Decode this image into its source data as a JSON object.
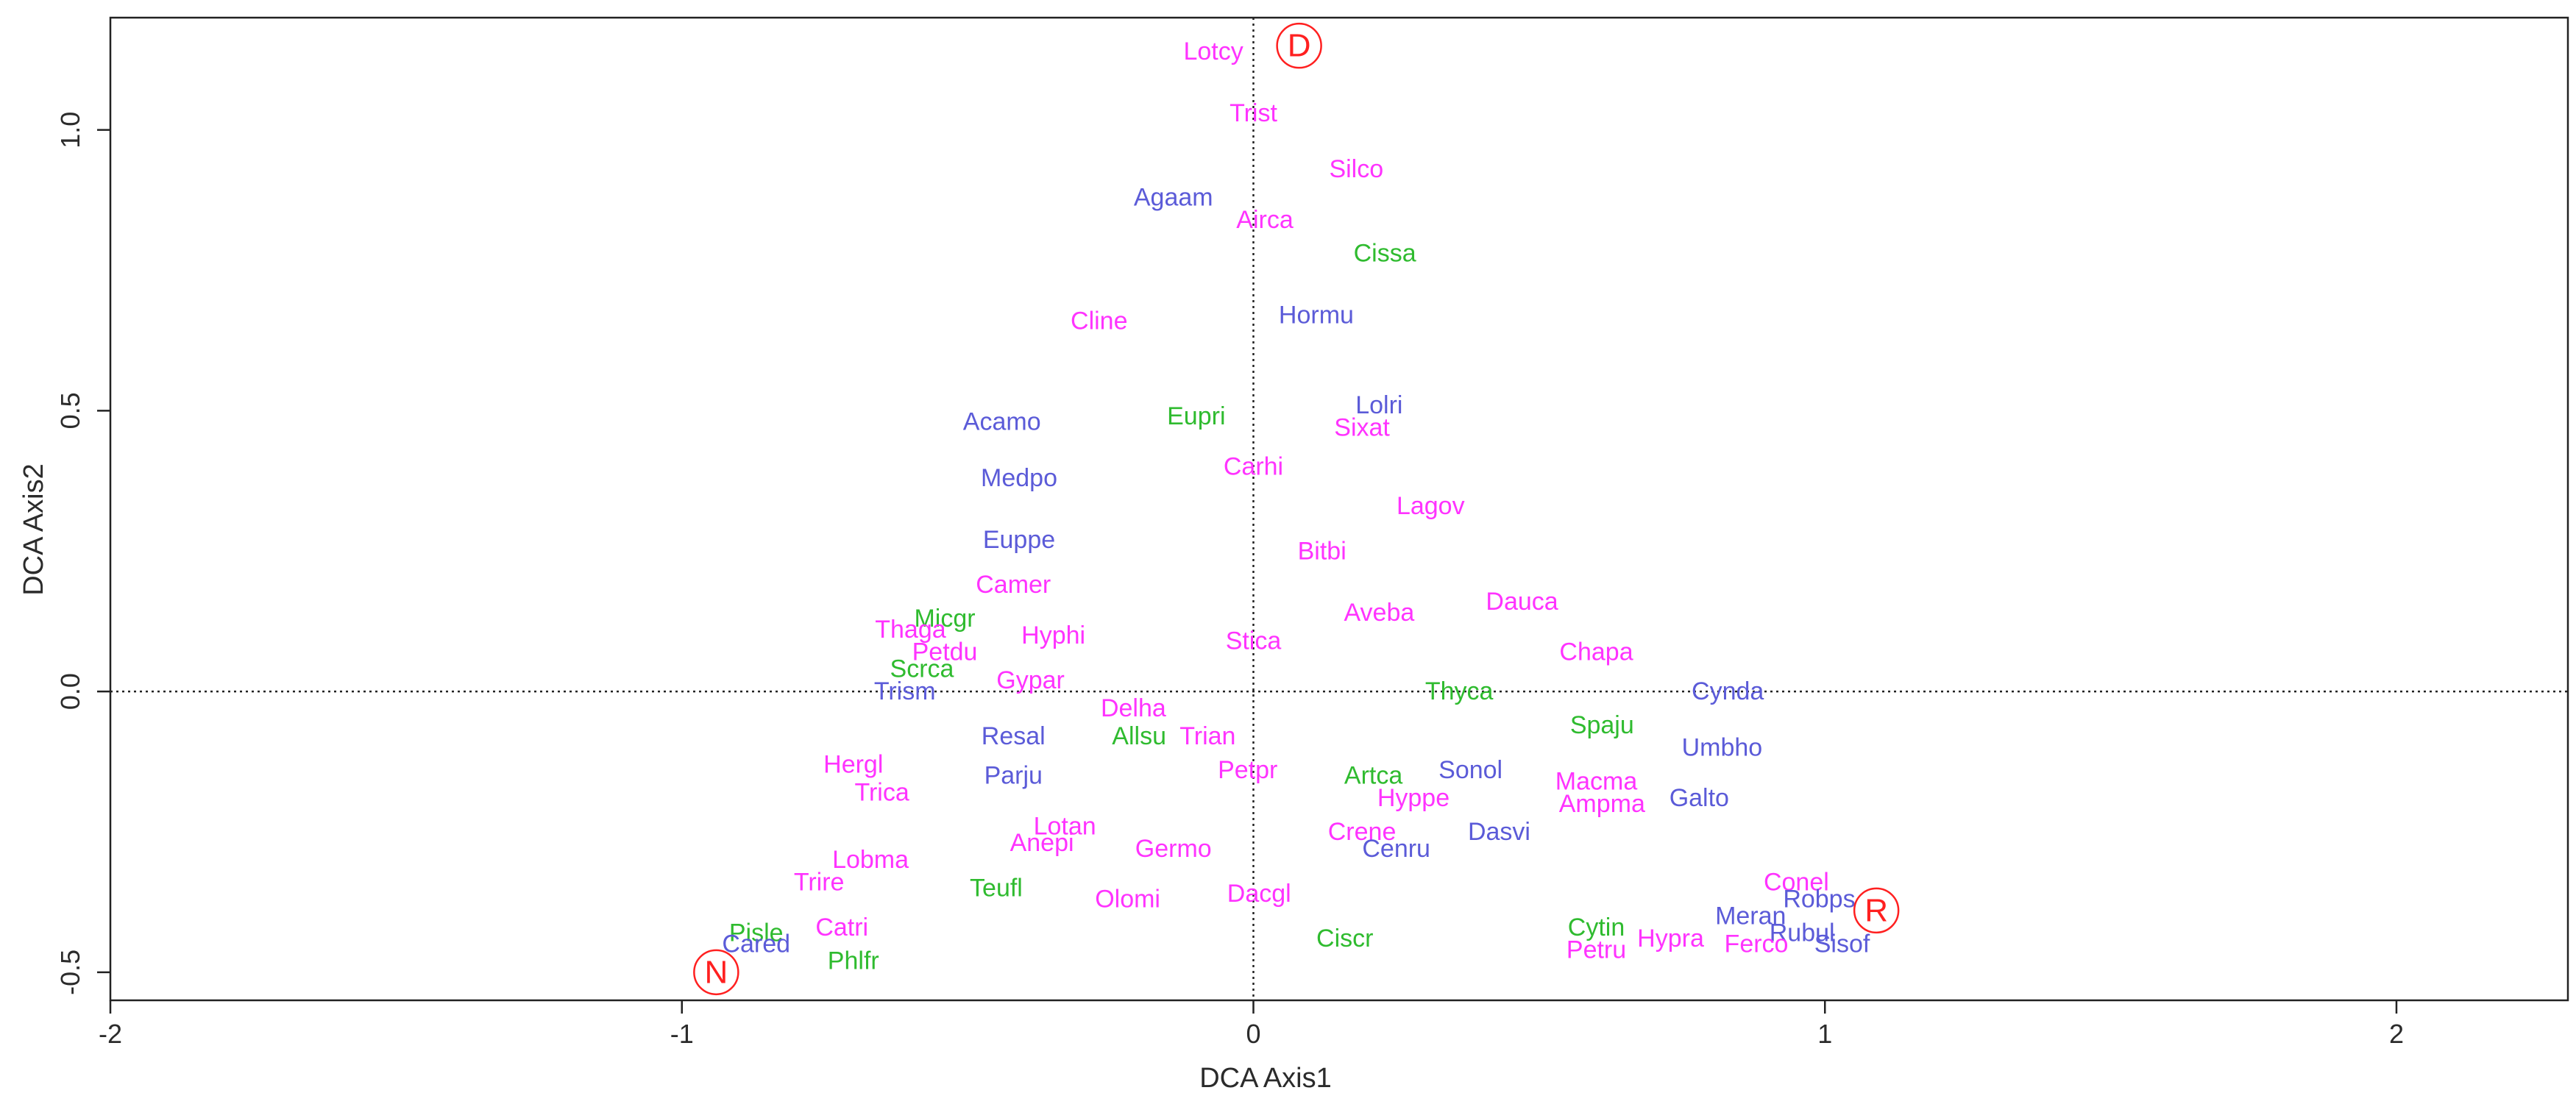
{
  "chart_data": {
    "type": "scatter",
    "xlabel": "DCA Axis1",
    "ylabel": "DCA Axis2",
    "xlim": [
      -2.0,
      2.3
    ],
    "ylim": [
      -0.55,
      1.2
    ],
    "x_ticks": [
      -2,
      -1,
      0,
      1,
      2
    ],
    "x_tick_labels": [
      "-2",
      "-1",
      "0",
      "1",
      "2"
    ],
    "y_ticks": [
      -0.5,
      0.0,
      0.5,
      1.0
    ],
    "y_tick_labels": [
      "-0.5",
      "0.0",
      "0.5",
      "1.0"
    ],
    "reference_lines": {
      "x": 0,
      "y": 0,
      "style": "dotted"
    },
    "grid": false,
    "colors": {
      "magenta": "#ff33ff",
      "blue": "#5b5bd8",
      "green": "#2fbb2f",
      "marker": "#ff2020"
    },
    "points": [
      {
        "label": "Lotcy",
        "x": -0.07,
        "y": 1.14,
        "color": "magenta"
      },
      {
        "label": "Trist",
        "x": 0.0,
        "y": 1.03,
        "color": "magenta"
      },
      {
        "label": "Silco",
        "x": 0.18,
        "y": 0.93,
        "color": "magenta"
      },
      {
        "label": "Agaam",
        "x": -0.14,
        "y": 0.88,
        "color": "blue"
      },
      {
        "label": "Airca",
        "x": 0.02,
        "y": 0.84,
        "color": "magenta"
      },
      {
        "label": "Cissa",
        "x": 0.23,
        "y": 0.78,
        "color": "green"
      },
      {
        "label": "Hormu",
        "x": 0.11,
        "y": 0.67,
        "color": "blue"
      },
      {
        "label": "Cline",
        "x": -0.27,
        "y": 0.66,
        "color": "magenta"
      },
      {
        "label": "Lolri",
        "x": 0.22,
        "y": 0.51,
        "color": "blue"
      },
      {
        "label": "Eupri",
        "x": -0.1,
        "y": 0.49,
        "color": "green"
      },
      {
        "label": "Acamo",
        "x": -0.44,
        "y": 0.48,
        "color": "blue"
      },
      {
        "label": "Sixat",
        "x": 0.19,
        "y": 0.47,
        "color": "magenta"
      },
      {
        "label": "Medpo",
        "x": -0.41,
        "y": 0.38,
        "color": "blue"
      },
      {
        "label": "Carhi",
        "x": 0.0,
        "y": 0.4,
        "color": "magenta"
      },
      {
        "label": "Lagov",
        "x": 0.31,
        "y": 0.33,
        "color": "magenta"
      },
      {
        "label": "Euppe",
        "x": -0.41,
        "y": 0.27,
        "color": "blue"
      },
      {
        "label": "Bitbi",
        "x": 0.12,
        "y": 0.25,
        "color": "magenta"
      },
      {
        "label": "Camer",
        "x": -0.42,
        "y": 0.19,
        "color": "magenta"
      },
      {
        "label": "Dauca",
        "x": 0.47,
        "y": 0.16,
        "color": "magenta"
      },
      {
        "label": "Aveba",
        "x": 0.22,
        "y": 0.14,
        "color": "magenta"
      },
      {
        "label": "Micgr",
        "x": -0.54,
        "y": 0.13,
        "color": "green"
      },
      {
        "label": "Thaga",
        "x": -0.6,
        "y": 0.11,
        "color": "magenta"
      },
      {
        "label": "Hyphi",
        "x": -0.35,
        "y": 0.1,
        "color": "magenta"
      },
      {
        "label": "Stica",
        "x": 0.0,
        "y": 0.09,
        "color": "magenta"
      },
      {
        "label": "Petdu",
        "x": -0.54,
        "y": 0.07,
        "color": "magenta"
      },
      {
        "label": "Chapa",
        "x": 0.6,
        "y": 0.07,
        "color": "magenta"
      },
      {
        "label": "Scrca",
        "x": -0.58,
        "y": 0.04,
        "color": "green"
      },
      {
        "label": "Gypar",
        "x": -0.39,
        "y": 0.02,
        "color": "magenta"
      },
      {
        "label": "Trism",
        "x": -0.61,
        "y": 0.0,
        "color": "blue"
      },
      {
        "label": "Thyca",
        "x": 0.36,
        "y": 0.0,
        "color": "green"
      },
      {
        "label": "Cynda",
        "x": 0.83,
        "y": 0.0,
        "color": "blue"
      },
      {
        "label": "Delha",
        "x": -0.21,
        "y": -0.03,
        "color": "magenta"
      },
      {
        "label": "Spaju",
        "x": 0.61,
        "y": -0.06,
        "color": "green"
      },
      {
        "label": "Resal",
        "x": -0.42,
        "y": -0.08,
        "color": "blue"
      },
      {
        "label": "Allsu",
        "x": -0.2,
        "y": -0.08,
        "color": "green"
      },
      {
        "label": "Trian",
        "x": -0.08,
        "y": -0.08,
        "color": "magenta"
      },
      {
        "label": "Umbho",
        "x": 0.82,
        "y": -0.1,
        "color": "blue"
      },
      {
        "label": "Hergl",
        "x": -0.7,
        "y": -0.13,
        "color": "magenta"
      },
      {
        "label": "Parju",
        "x": -0.42,
        "y": -0.15,
        "color": "blue"
      },
      {
        "label": "Petpr",
        "x": -0.01,
        "y": -0.14,
        "color": "magenta"
      },
      {
        "label": "Sonol",
        "x": 0.38,
        "y": -0.14,
        "color": "blue"
      },
      {
        "label": "Artca",
        "x": 0.21,
        "y": -0.15,
        "color": "green"
      },
      {
        "label": "Macma",
        "x": 0.6,
        "y": -0.16,
        "color": "magenta"
      },
      {
        "label": "Trica",
        "x": -0.65,
        "y": -0.18,
        "color": "magenta"
      },
      {
        "label": "Hyppe",
        "x": 0.28,
        "y": -0.19,
        "color": "magenta"
      },
      {
        "label": "Galto",
        "x": 0.78,
        "y": -0.19,
        "color": "blue"
      },
      {
        "label": "Ampma",
        "x": 0.61,
        "y": -0.2,
        "color": "magenta"
      },
      {
        "label": "Lotan",
        "x": -0.33,
        "y": -0.24,
        "color": "magenta"
      },
      {
        "label": "Dasvi",
        "x": 0.43,
        "y": -0.25,
        "color": "blue"
      },
      {
        "label": "Crene",
        "x": 0.19,
        "y": -0.25,
        "color": "magenta"
      },
      {
        "label": "Anepi",
        "x": -0.37,
        "y": -0.27,
        "color": "magenta"
      },
      {
        "label": "Germo",
        "x": -0.14,
        "y": -0.28,
        "color": "magenta"
      },
      {
        "label": "Cenru",
        "x": 0.25,
        "y": -0.28,
        "color": "blue"
      },
      {
        "label": "Lobma",
        "x": -0.67,
        "y": -0.3,
        "color": "magenta"
      },
      {
        "label": "Trire",
        "x": -0.76,
        "y": -0.34,
        "color": "magenta"
      },
      {
        "label": "Conel",
        "x": 0.95,
        "y": -0.34,
        "color": "magenta"
      },
      {
        "label": "Teufl",
        "x": -0.45,
        "y": -0.35,
        "color": "green"
      },
      {
        "label": "Dacgl",
        "x": 0.01,
        "y": -0.36,
        "color": "magenta"
      },
      {
        "label": "Olomi",
        "x": -0.22,
        "y": -0.37,
        "color": "magenta"
      },
      {
        "label": "Robps",
        "x": 0.99,
        "y": -0.37,
        "color": "blue"
      },
      {
        "label": "Meran",
        "x": 0.87,
        "y": -0.4,
        "color": "blue"
      },
      {
        "label": "Cytin",
        "x": 0.6,
        "y": -0.42,
        "color": "green"
      },
      {
        "label": "Catri",
        "x": -0.72,
        "y": -0.42,
        "color": "magenta"
      },
      {
        "label": "Pisle",
        "x": -0.87,
        "y": -0.43,
        "color": "green"
      },
      {
        "label": "Rubul",
        "x": 0.96,
        "y": -0.43,
        "color": "blue"
      },
      {
        "label": "Hypra",
        "x": 0.73,
        "y": -0.44,
        "color": "magenta"
      },
      {
        "label": "Ciscr",
        "x": 0.16,
        "y": -0.44,
        "color": "green"
      },
      {
        "label": "Cared",
        "x": -0.87,
        "y": -0.45,
        "color": "blue"
      },
      {
        "label": "Ferco",
        "x": 0.88,
        "y": -0.45,
        "color": "magenta"
      },
      {
        "label": "Sisof",
        "x": 1.03,
        "y": -0.45,
        "color": "blue"
      },
      {
        "label": "Petru",
        "x": 0.6,
        "y": -0.46,
        "color": "magenta"
      },
      {
        "label": "Phlfr",
        "x": -0.7,
        "y": -0.48,
        "color": "green"
      }
    ],
    "group_markers": [
      {
        "label": "D",
        "x": 0.08,
        "y": 1.15
      },
      {
        "label": "R",
        "x": 1.09,
        "y": -0.39
      },
      {
        "label": "N",
        "x": -0.94,
        "y": -0.5
      }
    ]
  }
}
